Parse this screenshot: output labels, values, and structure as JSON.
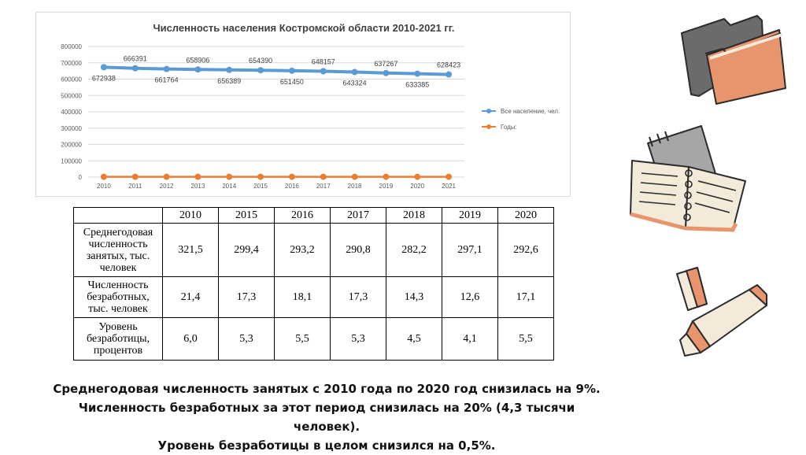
{
  "chart_data": {
    "type": "line",
    "title": "Численность населения Костромской области 2010-2021 гг.",
    "categories": [
      "2010",
      "2011",
      "2012",
      "2013",
      "2014",
      "2015",
      "2016",
      "2017",
      "2018",
      "2019",
      "2020",
      "2021"
    ],
    "ylim": [
      0,
      800000
    ],
    "yticks": [
      "0",
      "100000",
      "200000",
      "300000",
      "400000",
      "500000",
      "600000",
      "700000",
      "800000"
    ],
    "grid": true,
    "legend_position": "right",
    "series": [
      {
        "name": "Все население, чел.",
        "color": "#5b9bd5",
        "values": [
          672938,
          666391,
          661764,
          658906,
          656389,
          654390,
          651450,
          648157,
          643324,
          637267,
          633385,
          628423
        ],
        "labels": [
          "672938",
          "666391",
          "661764",
          "658906",
          "656389",
          "654390",
          "651450",
          "648157",
          "643324",
          "637267",
          "633385",
          "628423"
        ]
      },
      {
        "name": "Годы:",
        "color": "#ed7d31",
        "values": [
          2010,
          2011,
          2012,
          2013,
          2014,
          2015,
          2016,
          2017,
          2018,
          2019,
          2020,
          2021
        ]
      }
    ]
  },
  "table": {
    "years": [
      "2010",
      "2015",
      "2016",
      "2017",
      "2018",
      "2019",
      "2020"
    ],
    "rows": [
      {
        "label": "Среднегодовая численность занятых, тыс. человек",
        "values": [
          "321,5",
          "299,4",
          "293,2",
          "290,8",
          "282,2",
          "297,1",
          "292,6"
        ]
      },
      {
        "label": "Численность безработных, тыс. человек",
        "values": [
          "21,4",
          "17,3",
          "18,1",
          "17,3",
          "14,3",
          "12,6",
          "17,1"
        ]
      },
      {
        "label": "Уровень безработицы, процентов",
        "values": [
          "6,0",
          "5,3",
          "5,5",
          "5,3",
          "4,5",
          "4,1",
          "5,5"
        ]
      }
    ]
  },
  "summary": {
    "line1": "Среднегодовая численность занятых с 2010 года по 2020 год снизилась на 9%.",
    "line2": "Численность безработных за этот период снизилась на 20% (4,3 тысячи",
    "line3": "человек).",
    "line4": "Уровень безработицы в целом снизился на 0,5%."
  },
  "decorations": [
    "folder-icon",
    "notebook-icon",
    "highlighter-icon"
  ],
  "colors": {
    "accent_orange": "#e8956d",
    "dark_gray": "#6b6b6b",
    "cream": "#f3ead9"
  }
}
